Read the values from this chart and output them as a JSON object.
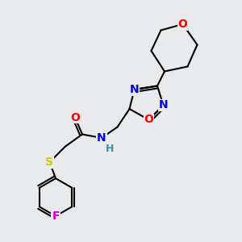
{
  "background_color": "#e8eaec",
  "bond_color": "#000000",
  "bond_width": 1.5,
  "atom_colors": {
    "O": "#ff0000",
    "N": "#0000dd",
    "S": "#cccc00",
    "F": "#cc00cc",
    "C": "#000000",
    "H": "#4488aa"
  },
  "figsize": [
    3.0,
    3.0
  ],
  "dpi": 100,
  "xlim": [
    0,
    10
  ],
  "ylim": [
    0,
    10
  ]
}
